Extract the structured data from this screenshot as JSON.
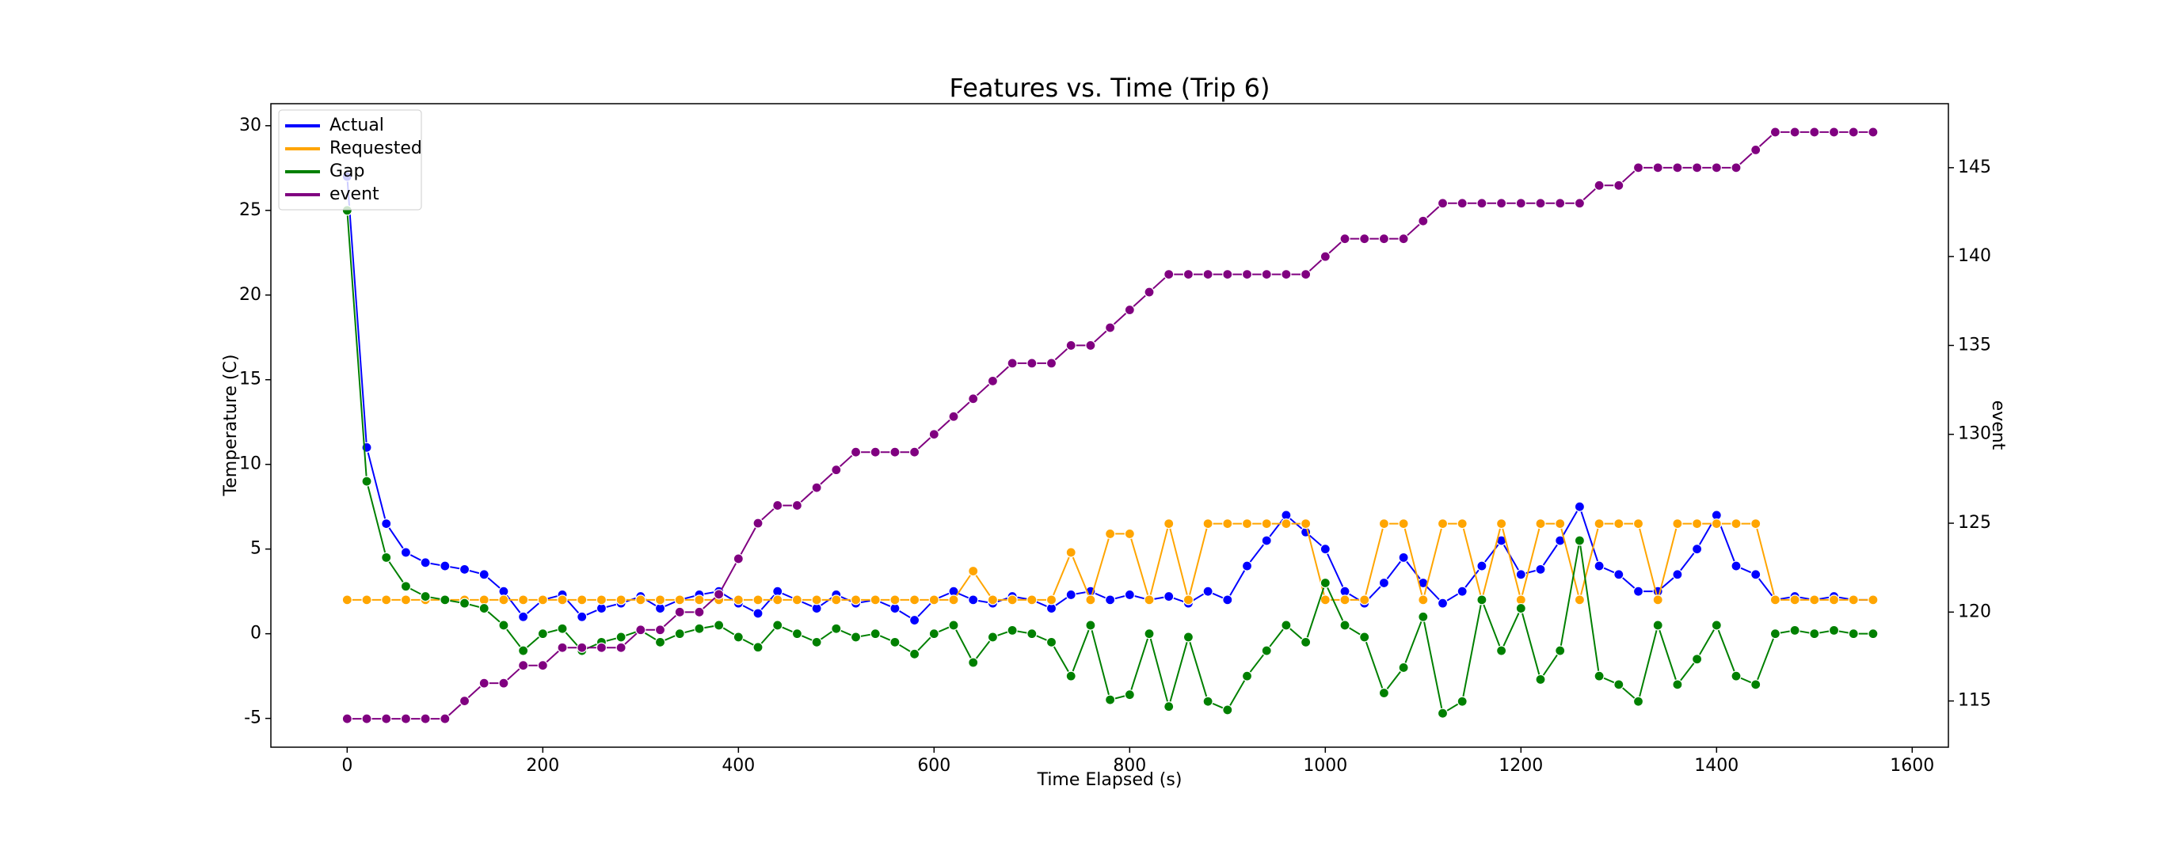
{
  "chart_data": {
    "type": "line",
    "title": "Features vs. Time (Trip 6)",
    "xlabel": "Time Elapsed (s)",
    "ylabel": "Temperature (C)",
    "y2label": "event",
    "x": [
      0,
      20,
      40,
      60,
      80,
      100,
      120,
      140,
      160,
      180,
      200,
      220,
      240,
      260,
      280,
      300,
      320,
      340,
      360,
      380,
      400,
      420,
      440,
      460,
      480,
      500,
      520,
      540,
      560,
      580,
      600,
      620,
      640,
      660,
      680,
      700,
      720,
      740,
      760,
      780,
      800,
      820,
      840,
      860,
      880,
      900,
      920,
      940,
      960,
      980,
      1000,
      1020,
      1040,
      1060,
      1080,
      1100,
      1120,
      1140,
      1160,
      1180,
      1200,
      1220,
      1240,
      1260,
      1280,
      1300,
      1320,
      1340,
      1360,
      1380,
      1400,
      1420,
      1440,
      1460,
      1480,
      1500,
      1520,
      1540,
      1560
    ],
    "series": [
      {
        "name": "Actual",
        "color": "#0000ff",
        "values": [
          27,
          11,
          6.5,
          4.8,
          4.2,
          4.0,
          3.8,
          3.5,
          2.5,
          1.0,
          2.0,
          2.3,
          1.0,
          1.5,
          1.8,
          2.2,
          1.5,
          2.0,
          2.3,
          2.5,
          1.8,
          1.2,
          2.5,
          2.0,
          1.5,
          2.3,
          1.8,
          2.0,
          1.5,
          0.8,
          2.0,
          2.5,
          2.0,
          1.8,
          2.2,
          2.0,
          1.5,
          2.3,
          2.5,
          2.0,
          2.3,
          2.0,
          2.2,
          1.8,
          2.5,
          2.0,
          4.0,
          5.5,
          7.0,
          6.0,
          5.0,
          2.5,
          1.8,
          3.0,
          4.5,
          3.0,
          1.8,
          2.5,
          4.0,
          5.5,
          3.5,
          3.8,
          5.5,
          7.5,
          4.0,
          3.5,
          2.5,
          2.5,
          3.5,
          5.0,
          7.0,
          4.0,
          3.5,
          2.0,
          2.2,
          2.0,
          2.2,
          2.0,
          2.0
        ]
      },
      {
        "name": "Requested",
        "color": "#ffa500",
        "values": [
          2,
          2,
          2,
          2,
          2,
          2,
          2,
          2,
          2,
          2,
          2,
          2,
          2,
          2,
          2,
          2,
          2,
          2,
          2,
          2,
          2,
          2,
          2,
          2,
          2,
          2,
          2,
          2,
          2,
          2,
          2,
          2,
          3.7,
          2,
          2,
          2,
          2,
          4.8,
          2,
          5.9,
          5.9,
          2,
          6.5,
          2,
          6.5,
          6.5,
          6.5,
          6.5,
          6.5,
          6.5,
          2,
          2,
          2,
          6.5,
          6.5,
          2,
          6.5,
          6.5,
          2,
          6.5,
          2,
          6.5,
          6.5,
          2,
          6.5,
          6.5,
          6.5,
          2,
          6.5,
          6.5,
          6.5,
          6.5,
          6.5,
          2,
          2,
          2,
          2,
          2,
          2
        ]
      },
      {
        "name": "Gap",
        "color": "#008000",
        "values": [
          25,
          9,
          4.5,
          2.8,
          2.2,
          2.0,
          1.8,
          1.5,
          0.5,
          -1.0,
          0,
          0.3,
          -1.0,
          -0.5,
          -0.2,
          0.2,
          -0.5,
          0,
          0.3,
          0.5,
          -0.2,
          -0.8,
          0.5,
          0,
          -0.5,
          0.3,
          -0.2,
          0,
          -0.5,
          -1.2,
          0,
          0.5,
          -1.7,
          -0.2,
          0.2,
          0,
          -0.5,
          -2.5,
          0.5,
          -3.9,
          -3.6,
          0,
          -4.3,
          -0.2,
          -4.0,
          -4.5,
          -2.5,
          -1.0,
          0.5,
          -0.5,
          3.0,
          0.5,
          -0.2,
          -3.5,
          -2.0,
          1.0,
          -4.7,
          -4.0,
          2.0,
          -1.0,
          1.5,
          -2.7,
          -1.0,
          5.5,
          -2.5,
          -3.0,
          -4.0,
          0.5,
          -3.0,
          -1.5,
          0.5,
          -2.5,
          -3.0,
          0,
          0.2,
          0,
          0.2,
          0,
          0
        ]
      },
      {
        "name": "event",
        "color": "#800080",
        "axis": "y2",
        "values": [
          114,
          114,
          114,
          114,
          114,
          114,
          115,
          116,
          116,
          117,
          117,
          118,
          118,
          118,
          118,
          119,
          119,
          120,
          120,
          121,
          123,
          125,
          126,
          126,
          127,
          128,
          129,
          129,
          129,
          129,
          130,
          131,
          132,
          133,
          134,
          134,
          134,
          135,
          135,
          136,
          137,
          138,
          139,
          139,
          139,
          139,
          139,
          139,
          139,
          139,
          140,
          141,
          141,
          141,
          141,
          142,
          143,
          143,
          143,
          143,
          143,
          143,
          143,
          143,
          144,
          144,
          145,
          145,
          145,
          145,
          145,
          145,
          146,
          147,
          147,
          147,
          147,
          147,
          147
        ]
      }
    ],
    "xlim": [
      -78,
      1637
    ],
    "xticks": [
      0,
      200,
      400,
      600,
      800,
      1000,
      1200,
      1400,
      1600
    ],
    "ylim": [
      -6.7,
      31.3
    ],
    "yticks": [
      -5,
      0,
      5,
      10,
      15,
      20,
      25,
      30
    ],
    "y2lim": [
      112.4,
      148.6
    ],
    "y2ticks": [
      115,
      120,
      125,
      130,
      135,
      140,
      145
    ],
    "legend": "upper left"
  }
}
